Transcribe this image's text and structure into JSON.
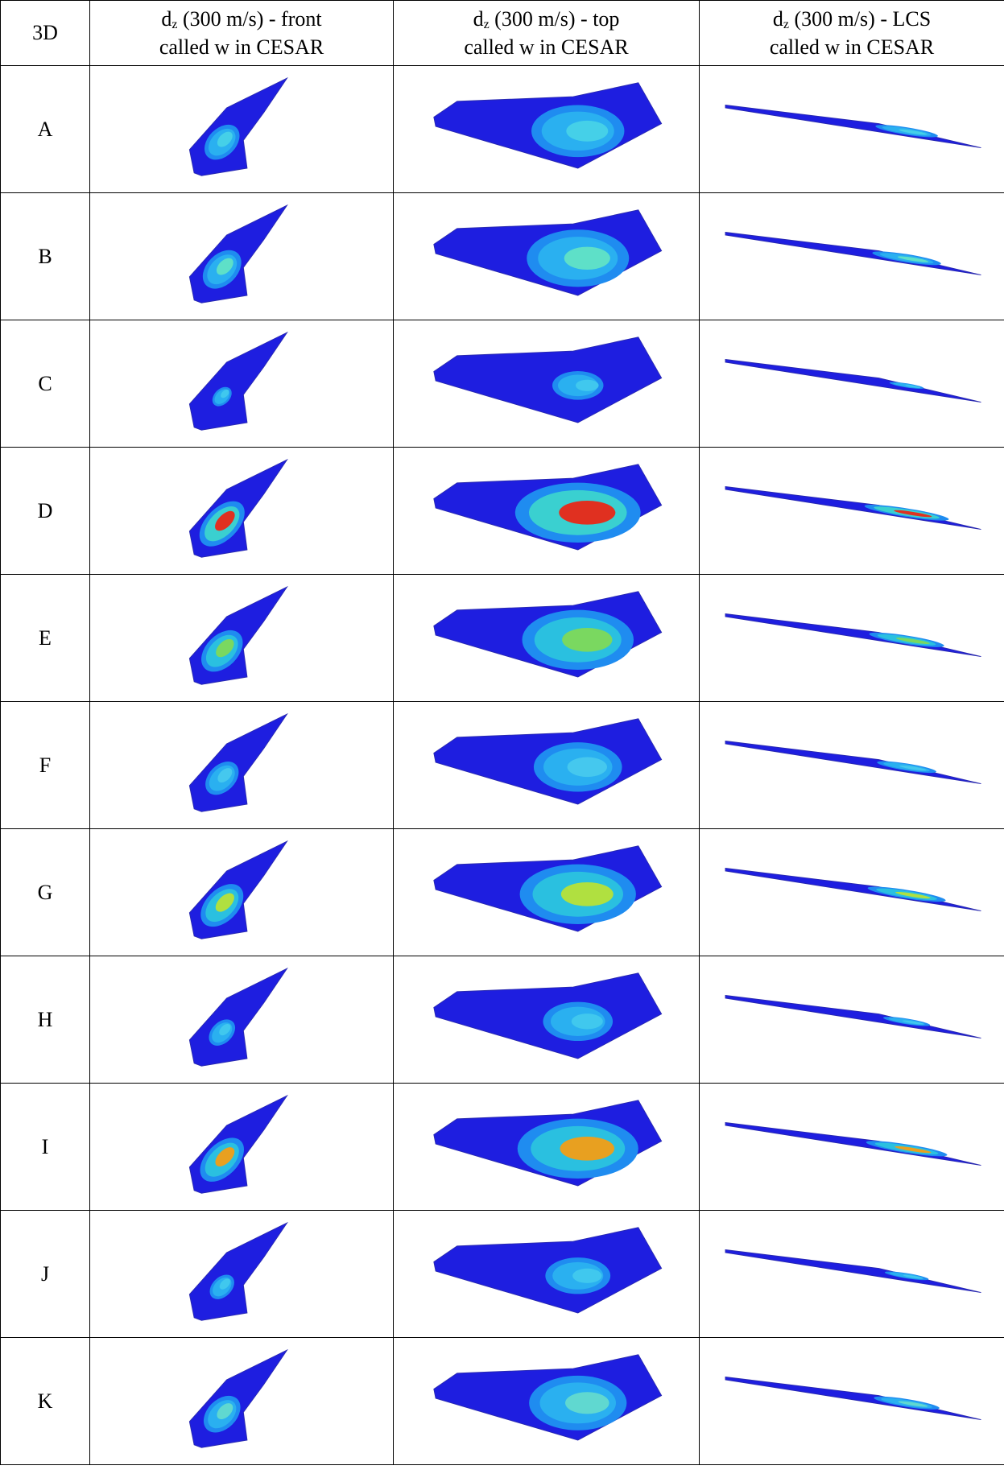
{
  "table": {
    "header": [
      "3D",
      {
        "symbol": "d",
        "subscript": "z",
        "text": " (300 m/s) - front",
        "line2": "called w in CESAR"
      },
      {
        "symbol": "d",
        "subscript": "z",
        "text": " (300 m/s) - top",
        "line2": "called w in CESAR"
      },
      {
        "symbol": "d",
        "subscript": "z",
        "text": " (300 m/s) - LCS",
        "line2": "called w in CESAR"
      }
    ],
    "rows": [
      "A",
      "B",
      "C",
      "D",
      "E",
      "F",
      "G",
      "H",
      "I",
      "J",
      "K"
    ]
  }
}
